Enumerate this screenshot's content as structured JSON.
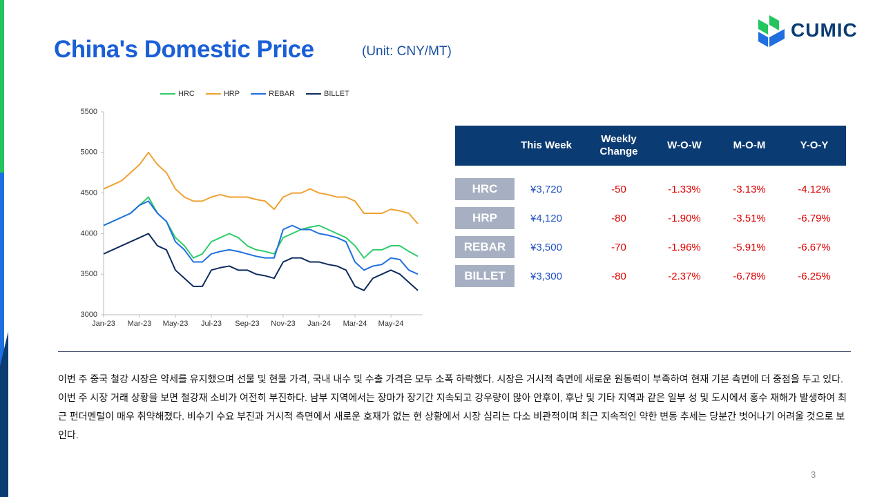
{
  "header": {
    "title": "China's Domestic Price",
    "unit": "(Unit: CNY/MT)",
    "logo": "CUMIC"
  },
  "chart_data": {
    "type": "line",
    "categories": [
      "Jan-23",
      null,
      null,
      null,
      "Mar-23",
      null,
      null,
      null,
      "May-23",
      null,
      null,
      null,
      "Jul-23",
      null,
      null,
      null,
      "Sep-23",
      null,
      null,
      null,
      "Nov-23",
      null,
      null,
      null,
      "Jan-24",
      null,
      null,
      null,
      "Mar-24",
      null,
      null,
      null,
      "May-24",
      null,
      null,
      null
    ],
    "series": [
      {
        "name": "HRC",
        "color": "#2ecc6a",
        "values": [
          4100,
          4150,
          4200,
          4250,
          4350,
          4450,
          4250,
          4150,
          3950,
          3850,
          3700,
          3750,
          3900,
          3950,
          4000,
          3950,
          3850,
          3800,
          3780,
          3750,
          3950,
          4000,
          4050,
          4080,
          4100,
          4050,
          4000,
          3950,
          3850,
          3700,
          3800,
          3800,
          3850,
          3850,
          3780,
          3720
        ]
      },
      {
        "name": "HRP",
        "color": "#f0a030",
        "values": [
          4550,
          4600,
          4650,
          4750,
          4850,
          5000,
          4850,
          4750,
          4550,
          4450,
          4400,
          4400,
          4450,
          4480,
          4450,
          4450,
          4450,
          4420,
          4400,
          4300,
          4450,
          4500,
          4500,
          4550,
          4500,
          4480,
          4450,
          4450,
          4400,
          4250,
          4250,
          4250,
          4300,
          4280,
          4250,
          4120
        ]
      },
      {
        "name": "REBAR",
        "color": "#1f6fe0",
        "values": [
          4100,
          4150,
          4200,
          4250,
          4350,
          4400,
          4250,
          4150,
          3900,
          3800,
          3650,
          3650,
          3750,
          3780,
          3800,
          3780,
          3750,
          3720,
          3700,
          3700,
          4050,
          4100,
          4050,
          4050,
          4000,
          3980,
          3950,
          3900,
          3650,
          3550,
          3600,
          3620,
          3700,
          3680,
          3550,
          3500
        ]
      },
      {
        "name": "BILLET",
        "color": "#0d2b5e",
        "values": [
          3750,
          3800,
          3850,
          3900,
          3950,
          4000,
          3850,
          3800,
          3550,
          3450,
          3350,
          3350,
          3550,
          3580,
          3600,
          3550,
          3550,
          3500,
          3480,
          3450,
          3650,
          3700,
          3700,
          3650,
          3650,
          3620,
          3600,
          3550,
          3350,
          3300,
          3450,
          3500,
          3550,
          3500,
          3400,
          3300
        ]
      }
    ],
    "ylim": [
      3000,
      5500
    ],
    "yticks": [
      3000,
      3500,
      4000,
      4500,
      5000,
      5500
    ],
    "legend": "top"
  },
  "table": {
    "columns": [
      "This Week",
      "Weekly Change",
      "W-O-W",
      "M-O-M",
      "Y-O-Y"
    ],
    "rows": [
      [
        "HRC",
        "¥3,720",
        "-50",
        "-1.33%",
        "-3.13%",
        "-4.12%"
      ],
      [
        "HRP",
        "¥4,120",
        "-80",
        "-1.90%",
        "-3.51%",
        "-6.79%"
      ],
      [
        "REBAR",
        "¥3,500",
        "-70",
        "-1.96%",
        "-5.91%",
        "-6.67%"
      ],
      [
        "BILLET",
        "¥3,300",
        "-80",
        "-2.37%",
        "-6.78%",
        "-6.25%"
      ]
    ]
  },
  "paragraph": "이번 주 중국 철강 시장은 약세를 유지했으며 선물 및 현물 가격, 국내 내수 및 수출 가격은 모두 소폭 하락했다. 시장은 거시적 측면에 새로운 원동력이 부족하여 현재 기본 측면에 더 중점을 두고 있다. 이번 주 시장 거래 상황을 보면 철강재 소비가 여전히 부진하다. 남부 지역에서는 장마가 장기간 지속되고 강우량이 많아 안후이, 후난 및 기타 지역과 같은 일부 성 및 도시에서 홍수 재해가 발생하여 최근 펀더멘털이 매우 취약해졌다. 비수기 수요 부진과 거시적 측면에서 새로운 호재가 없는 현 상황에서 시장 심리는 다소 비관적이며 최근 지속적인 약한 변동 추세는 당분간 벗어나기 어려울 것으로 보인다.",
  "page_number": "3"
}
